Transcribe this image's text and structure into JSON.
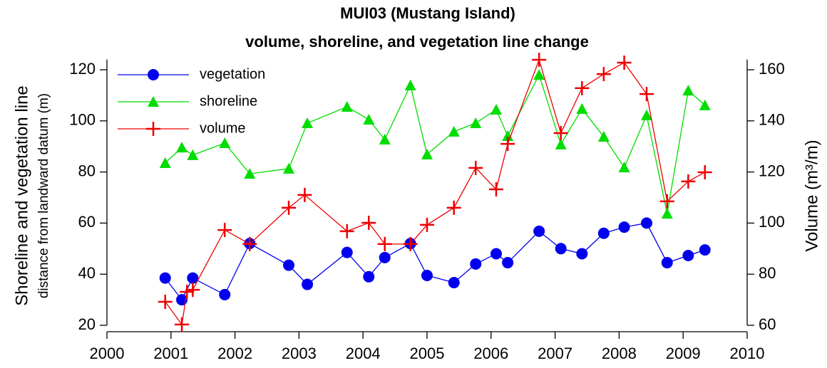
{
  "chart_data": {
    "type": "line",
    "title": "MUI03 (Mustang Island)",
    "subtitle": "volume, shoreline, and vegetation line change",
    "ylabel": [
      "Shoreline and vegetation line",
      "distance from landward datum (m)"
    ],
    "y2label": "Volume (m³/m)",
    "legend": "upper left",
    "xlim": [
      2000,
      2010
    ],
    "xticks": [
      2000,
      2001,
      2002,
      2003,
      2004,
      2005,
      2006,
      2007,
      2008,
      2009,
      2010
    ],
    "ylim": [
      20,
      124
    ],
    "yticks": [
      20,
      40,
      60,
      80,
      100,
      120
    ],
    "y2lim": [
      60,
      164
    ],
    "y2ticks": [
      60,
      80,
      100,
      120,
      140,
      160
    ],
    "series": [
      {
        "name": "vegetation",
        "color": "#0000ee",
        "marker": "circle",
        "x": [
          2000.91,
          2001.17,
          2001.34,
          2001.84,
          2002.23,
          2002.84,
          2003.13,
          2003.75,
          2004.09,
          2004.34,
          2004.74,
          2005.0,
          2005.42,
          2005.76,
          2006.08,
          2006.26,
          2006.75,
          2007.09,
          2007.42,
          2007.76,
          2008.08,
          2008.43,
          2008.75,
          2009.08,
          2009.34
        ],
        "values": [
          38.5,
          30,
          38.5,
          32,
          52,
          43.5,
          36,
          48.5,
          39,
          46.5,
          52,
          39.5,
          36.7,
          44,
          48,
          44.5,
          56.8,
          50,
          48,
          56,
          58.4,
          60,
          44.5,
          47.3,
          49.5
        ]
      },
      {
        "name": "shoreline",
        "color": "#00dd00",
        "marker": "triangle",
        "x": [
          2000.91,
          2001.17,
          2001.34,
          2001.84,
          2002.23,
          2002.84,
          2003.13,
          2003.75,
          2004.09,
          2004.34,
          2004.74,
          2005.0,
          2005.42,
          2005.76,
          2006.08,
          2006.26,
          2006.75,
          2007.09,
          2007.42,
          2007.76,
          2008.08,
          2008.43,
          2008.75,
          2009.08,
          2009.34
        ],
        "values": [
          83.5,
          89.6,
          86.6,
          91.3,
          79.3,
          81.3,
          99.1,
          105.5,
          100.5,
          92.7,
          113.9,
          86.9,
          95.8,
          99.1,
          104.4,
          94.1,
          118,
          90.8,
          104.7,
          93.8,
          81.8,
          102.2,
          63.7,
          111.9,
          106.1
        ]
      },
      {
        "name": "volume",
        "color": "#ee0000",
        "marker": "plus",
        "axis": "y2",
        "x": [
          2000.91,
          2001.17,
          2001.25,
          2001.34,
          2001.84,
          2002.23,
          2002.84,
          2003.09,
          2003.75,
          2004.09,
          2004.34,
          2004.74,
          2005.0,
          2005.42,
          2005.76,
          2006.08,
          2006.26,
          2006.75,
          2007.09,
          2007.42,
          2007.76,
          2008.08,
          2008.43,
          2008.75,
          2009.08,
          2009.34
        ],
        "values": [
          69.2,
          60.3,
          73.1,
          73.9,
          97.3,
          91.8,
          106,
          111,
          96.8,
          100.1,
          91.8,
          91.8,
          99.3,
          106,
          121.6,
          113.2,
          131,
          163.9,
          135.2,
          152.8,
          158.3,
          162.8,
          150.5,
          108.5,
          116.3,
          119.9
        ]
      }
    ]
  }
}
